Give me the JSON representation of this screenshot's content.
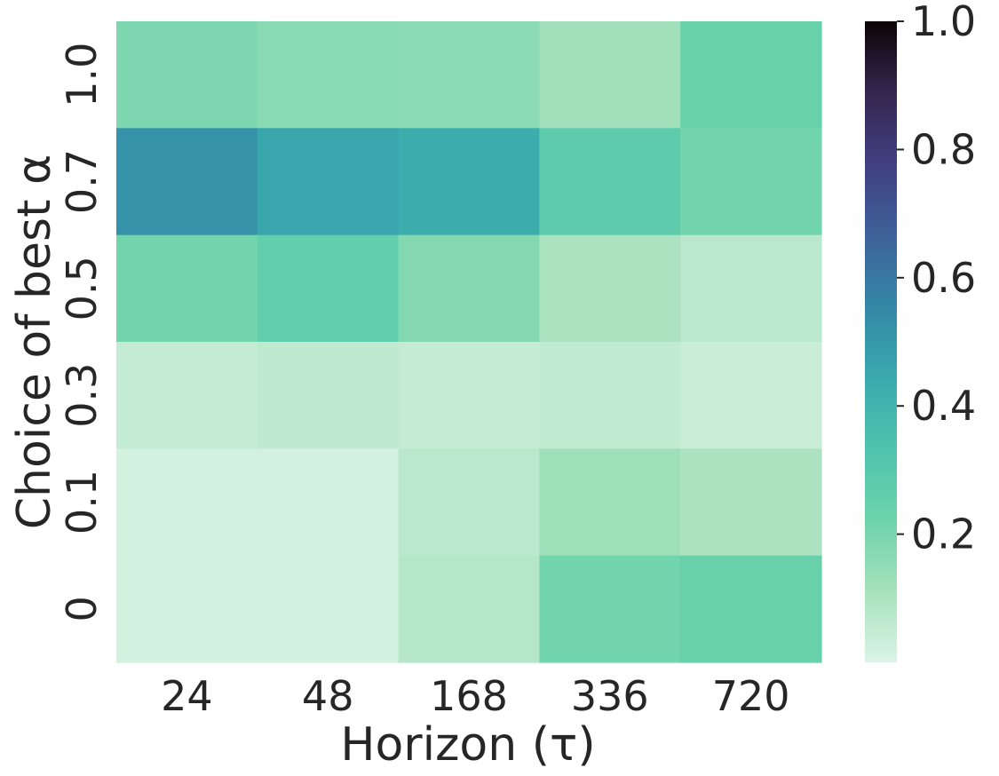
{
  "chart_data": {
    "type": "heatmap",
    "x_categories": [
      "24",
      "48",
      "168",
      "336",
      "720"
    ],
    "y_categories": [
      "1.0",
      "0.7",
      "0.5",
      "0.3",
      "0.1",
      "0"
    ],
    "values": [
      [
        0.19,
        0.17,
        0.16,
        0.12,
        0.24
      ],
      [
        0.52,
        0.46,
        0.43,
        0.28,
        0.21
      ],
      [
        0.21,
        0.26,
        0.18,
        0.1,
        0.07
      ],
      [
        0.05,
        0.06,
        0.05,
        0.055,
        0.04
      ],
      [
        0.02,
        0.02,
        0.07,
        0.13,
        0.1
      ],
      [
        0.02,
        0.02,
        0.08,
        0.21,
        0.24
      ]
    ],
    "xlabel": "Horizon (τ)",
    "ylabel": "Choice of best α",
    "colorbar": {
      "min": 0.0,
      "max": 1.0,
      "ticks": [
        "0.2",
        "0.4",
        "0.6",
        "0.8",
        "1.0"
      ],
      "tick_values": [
        0.2,
        0.4,
        0.6,
        0.8,
        1.0
      ],
      "colormap": "mako_r",
      "placement": "right"
    },
    "grid": false,
    "colors": {
      "text": "#262626",
      "scale_stops": [
        "#dcf4e6",
        "#a6e1bc",
        "#6dd3ab",
        "#4fc3ad",
        "#3aaaae",
        "#3487a6",
        "#3e619a",
        "#413f81",
        "#35264f",
        "#0b0405"
      ]
    }
  }
}
